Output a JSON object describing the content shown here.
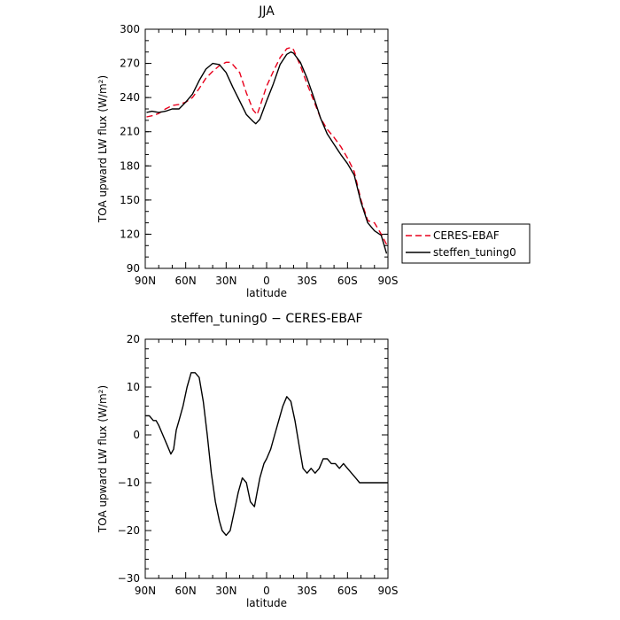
{
  "colors": {
    "ceres": "#e8001c",
    "model": "#000000",
    "axes": "#000000",
    "legend_border": "#000000"
  },
  "chart_data": [
    {
      "type": "line",
      "title": "JJA",
      "xlabel": "latitude",
      "ylabel": "TOA upward LW flux (W/m²)",
      "xlim": [
        90,
        -90
      ],
      "ylim": [
        90,
        300
      ],
      "xticks": [
        90,
        60,
        30,
        0,
        -30,
        -60,
        -90
      ],
      "xtick_labels": [
        "90N",
        "60N",
        "30N",
        "0",
        "30S",
        "60S",
        "90S"
      ],
      "yticks": [
        90,
        120,
        150,
        180,
        210,
        240,
        270,
        300
      ],
      "ytick_labels": [
        "90",
        "120",
        "150",
        "180",
        "210",
        "240",
        "270",
        "300"
      ],
      "legend_position": "outside-right",
      "series": [
        {
          "name": "CERES-EBAF",
          "color": "#e8001c",
          "dash": "dashed",
          "x": [
            89,
            85,
            80,
            75,
            70,
            65,
            60,
            55,
            50,
            45,
            40,
            35,
            30,
            27,
            25,
            20,
            15,
            10,
            7,
            5,
            0,
            -5,
            -10,
            -15,
            -18,
            -20,
            -25,
            -30,
            -35,
            -40,
            -45,
            -50,
            -55,
            -60,
            -65,
            -70,
            -75,
            -80,
            -85,
            -89
          ],
          "y": [
            223,
            224,
            226,
            230,
            233,
            234,
            236,
            240,
            248,
            257,
            263,
            268,
            271,
            271,
            269,
            262,
            244,
            229,
            225,
            232,
            250,
            263,
            275,
            283,
            284,
            282,
            268,
            252,
            237,
            222,
            212,
            205,
            197,
            187,
            175,
            150,
            132,
            130,
            120,
            111
          ]
        },
        {
          "name": "steffen_tuning0",
          "color": "#000000",
          "dash": "solid",
          "x": [
            89,
            85,
            80,
            75,
            70,
            65,
            60,
            55,
            50,
            45,
            40,
            35,
            30,
            25,
            20,
            15,
            10,
            8,
            5,
            0,
            -5,
            -10,
            -15,
            -18,
            -20,
            -25,
            -30,
            -35,
            -40,
            -45,
            -50,
            -55,
            -60,
            -65,
            -70,
            -75,
            -80,
            -85,
            -89
          ],
          "y": [
            227,
            228,
            227,
            228,
            230,
            230,
            236,
            243,
            255,
            265,
            270,
            269,
            262,
            249,
            237,
            225,
            219,
            217,
            221,
            237,
            252,
            269,
            278,
            280,
            279,
            271,
            257,
            240,
            222,
            208,
            199,
            190,
            182,
            172,
            148,
            130,
            123,
            119,
            103
          ]
        }
      ]
    },
    {
      "type": "line",
      "title": "steffen_tuning0 − CERES-EBAF",
      "xlabel": "latitude",
      "ylabel": "TOA upward LW flux (W/m²)",
      "xlim": [
        90,
        -90
      ],
      "ylim": [
        -30,
        20
      ],
      "xticks": [
        90,
        60,
        30,
        0,
        -30,
        -60,
        -90
      ],
      "xtick_labels": [
        "90N",
        "60N",
        "30N",
        "0",
        "30S",
        "60S",
        "90S"
      ],
      "yticks": [
        -30,
        -20,
        -10,
        0,
        10,
        20
      ],
      "ytick_labels": [
        "−30",
        "−20",
        "−10",
        "0",
        "10",
        "20"
      ],
      "series": [
        {
          "color": "#000000",
          "dash": "solid",
          "x": [
            90,
            87,
            84,
            82,
            80,
            77,
            74,
            71,
            69,
            67,
            65,
            62,
            59,
            56,
            53,
            50,
            47,
            44,
            41,
            38,
            35,
            33,
            30,
            27,
            24,
            21,
            18,
            15,
            12,
            9,
            7,
            5,
            2,
            0,
            -3,
            -6,
            -9,
            -12,
            -15,
            -18,
            -21,
            -24,
            -27,
            -30,
            -33,
            -36,
            -39,
            -42,
            -45,
            -48,
            -51,
            -54,
            -57,
            -60,
            -63,
            -66,
            -69,
            -72,
            -75,
            -78,
            -81,
            -84,
            -87,
            -90
          ],
          "y": [
            4,
            4,
            3,
            3,
            2,
            0,
            -2,
            -4,
            -3,
            1,
            3,
            6,
            10,
            13,
            13,
            12,
            7,
            0,
            -8,
            -14,
            -18,
            -20,
            -21,
            -20,
            -16,
            -12,
            -9,
            -10,
            -14,
            -15,
            -12,
            -9,
            -6,
            -5,
            -3,
            0,
            3,
            6,
            8,
            7,
            3,
            -2,
            -7,
            -8,
            -7,
            -8,
            -7,
            -5,
            -5,
            -6,
            -6,
            -7,
            -6,
            -7,
            -8,
            -9,
            -10,
            -10,
            -10,
            -10,
            -10,
            -10,
            -10,
            -10
          ]
        }
      ]
    }
  ]
}
